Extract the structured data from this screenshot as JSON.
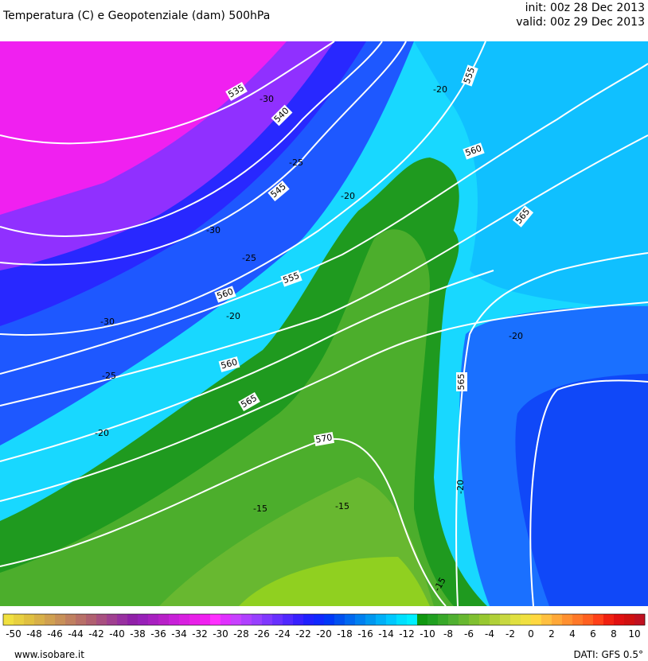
{
  "header": {
    "title": "Temperatura (C) e Geopotenziale (dam) 500hPa",
    "init": "init: 00z 28 Dec 2013",
    "valid": "valid: 00z 29 Dec 2013"
  },
  "map": {
    "contour_labels": [
      "535",
      "540",
      "545",
      "555",
      "560",
      "565",
      "555",
      "560",
      "560",
      "565",
      "570",
      "565",
      "-20",
      "-30",
      "-25",
      "-20",
      "-30",
      "-25",
      "-20",
      "-30",
      "-25",
      "-20",
      "-20",
      "-20",
      "-15",
      "-15",
      "-15"
    ]
  },
  "colorbar": {
    "colors": [
      "#f0e040",
      "#e8d040",
      "#e0c040",
      "#d8b048",
      "#d0a050",
      "#c89058",
      "#c08060",
      "#b87068",
      "#b06070",
      "#a85080",
      "#a04090",
      "#9830a0",
      "#9020a8",
      "#9820b8",
      "#a820c0",
      "#b820c8",
      "#c820d8",
      "#d820e0",
      "#e820e8",
      "#f020f0",
      "#ff30ff",
      "#e030ff",
      "#c840ff",
      "#b040ff",
      "#9840ff",
      "#8038ff",
      "#6830ff",
      "#5028ff",
      "#3820ff",
      "#2020ff",
      "#1028ff",
      "#0038f8",
      "#0050f0",
      "#0068f0",
      "#0080f0",
      "#0098f0",
      "#00b0f8",
      "#00c8ff",
      "#00e0ff",
      "#00f0ff",
      "#109810",
      "#20a020",
      "#38a828",
      "#50b030",
      "#68b830",
      "#80c030",
      "#98c830",
      "#b0d038",
      "#c8d840",
      "#e0e040",
      "#f0e040",
      "#ffd840",
      "#ffc040",
      "#ffa838",
      "#ff9030",
      "#ff7828",
      "#ff6020",
      "#ff4018",
      "#f02010",
      "#e01010",
      "#d01010",
      "#c01020"
    ],
    "labels": [
      -50,
      -48,
      -46,
      -44,
      -42,
      -40,
      -38,
      -36,
      -34,
      -32,
      -30,
      -28,
      -26,
      -24,
      -22,
      -20,
      -18,
      -16,
      -14,
      -12,
      -10,
      -8,
      -6,
      -4,
      -2,
      0,
      2,
      4,
      6,
      8,
      10
    ]
  },
  "footer": {
    "source": "www.isobare.it",
    "data": "DATI: GFS 0.5°"
  }
}
